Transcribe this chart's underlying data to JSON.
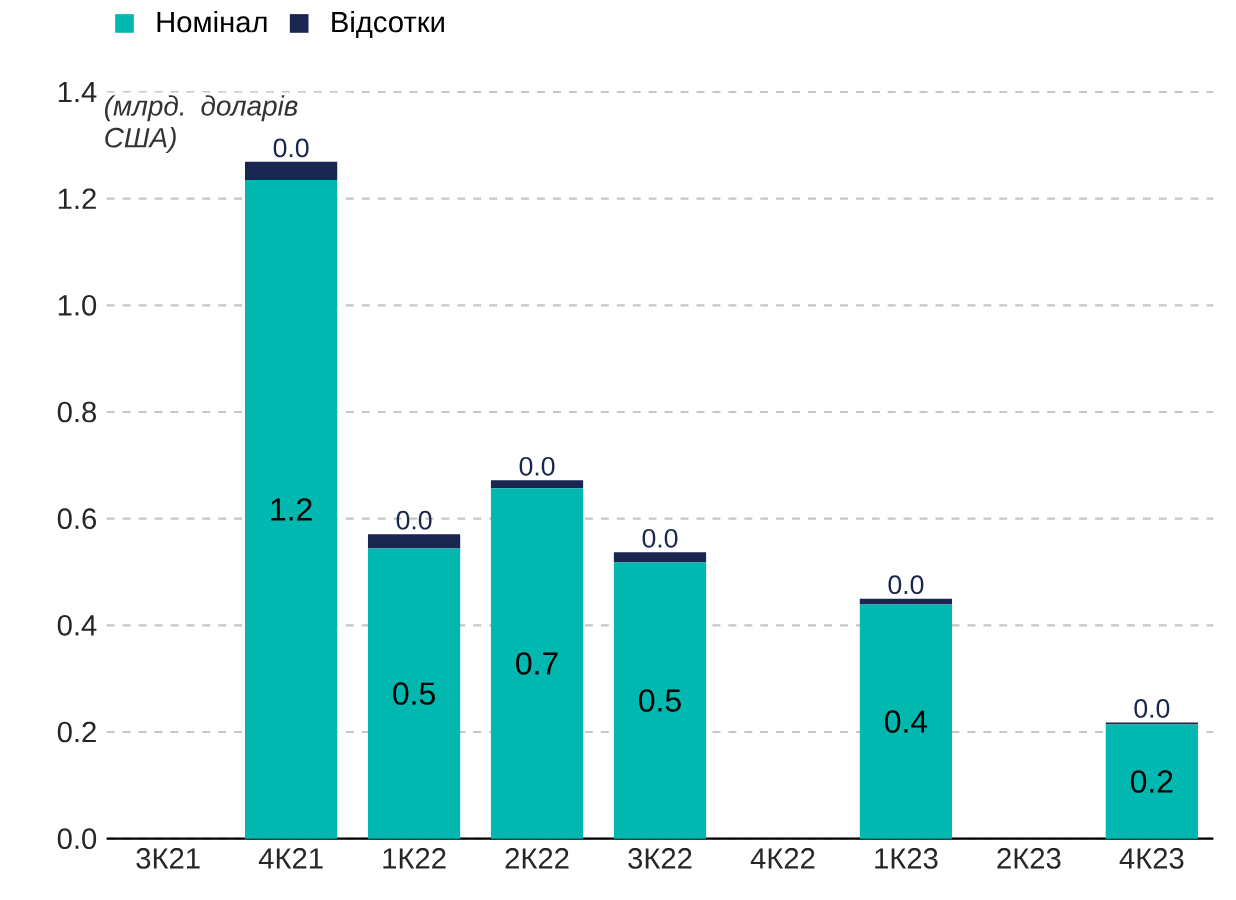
{
  "chart_data": {
    "type": "bar",
    "stacked": true,
    "ylabel": "(млрд. доларів США)",
    "categories": [
      "3К21",
      "4К21",
      "1К22",
      "2К22",
      "3К22",
      "4К22",
      "1К23",
      "2К23",
      "4К23"
    ],
    "series": [
      {
        "name": "Номінал",
        "color": "#00b8b0",
        "values": [
          0,
          1.235,
          0.544,
          0.657,
          0.518,
          0,
          0.439,
          0,
          0.214
        ],
        "value_labels": [
          null,
          "1.2",
          "0.5",
          "0.7",
          "0.5",
          null,
          "0.4",
          null,
          "0.2"
        ]
      },
      {
        "name": "Відсотки",
        "color": "#1a2550",
        "values": [
          0,
          0.034,
          0.027,
          0.015,
          0.019,
          0,
          0.011,
          0,
          0.004
        ],
        "value_labels": [
          null,
          "0.0",
          "0.0",
          "0.0",
          "0.0",
          null,
          "0.0",
          null,
          "0.0"
        ]
      }
    ],
    "ylim": [
      0,
      1.4
    ],
    "yticks": [
      {
        "value": 0,
        "label": "0.0"
      },
      0.2,
      0.4,
      0.6,
      0.8,
      {
        "value": 1,
        "label": "1.0"
      },
      1.2,
      1.4
    ],
    "grid": "y",
    "legend": "top left"
  }
}
